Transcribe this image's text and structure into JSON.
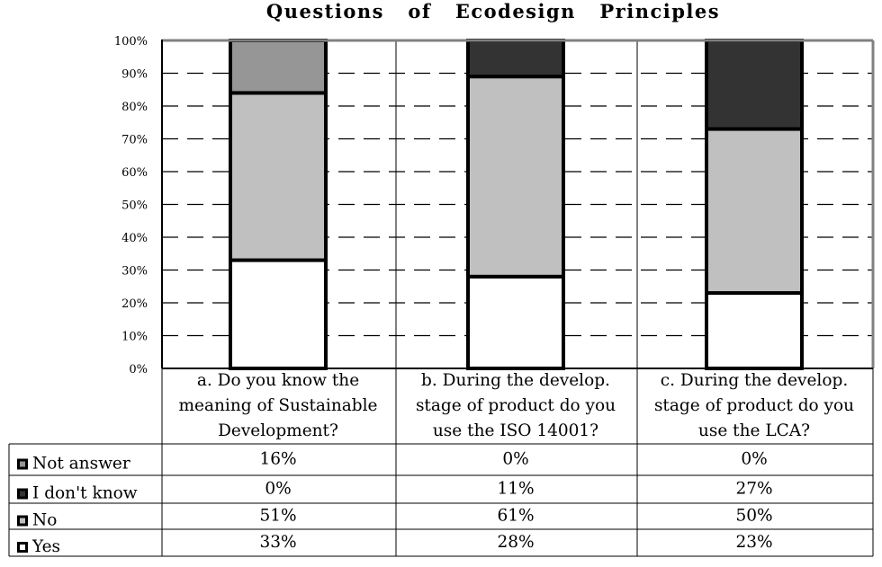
{
  "chart_data": {
    "type": "bar",
    "stacked": true,
    "percent": true,
    "title": "Questions   of   Ecodesign   Principles",
    "categories": [
      [
        "a. Do you know the",
        "meaning of Sustainable",
        "Development?"
      ],
      [
        "b. During the develop.",
        "stage of product do you",
        "use the ISO 14001?"
      ],
      [
        "c. During the develop.",
        "stage of product do you",
        "use the LCA?"
      ]
    ],
    "series": [
      {
        "name": "Yes",
        "values": [
          33,
          28,
          23
        ],
        "labels": [
          "33%",
          "28%",
          "23%"
        ],
        "color": "#ffffff"
      },
      {
        "name": "No",
        "values": [
          51,
          61,
          50
        ],
        "labels": [
          "51%",
          "61%",
          "50%"
        ],
        "color": "#c0c0c0"
      },
      {
        "name": "I don't know",
        "values": [
          0,
          11,
          27
        ],
        "labels": [
          "0%",
          "11%",
          "27%"
        ],
        "color": "#333333"
      },
      {
        "name": "Not answer",
        "values": [
          16,
          0,
          0
        ],
        "labels": [
          "16%",
          "0%",
          "0%"
        ],
        "color": "#969696"
      }
    ],
    "table_row_order": [
      "Not answer",
      "I don't know",
      "No",
      "Yes"
    ],
    "yticks": [
      "0%",
      "10%",
      "20%",
      "30%",
      "40%",
      "50%",
      "60%",
      "70%",
      "80%",
      "90%",
      "100%"
    ],
    "ylim": [
      0,
      100
    ],
    "grid": "dashed horizontal",
    "legend": "data table below chart"
  }
}
